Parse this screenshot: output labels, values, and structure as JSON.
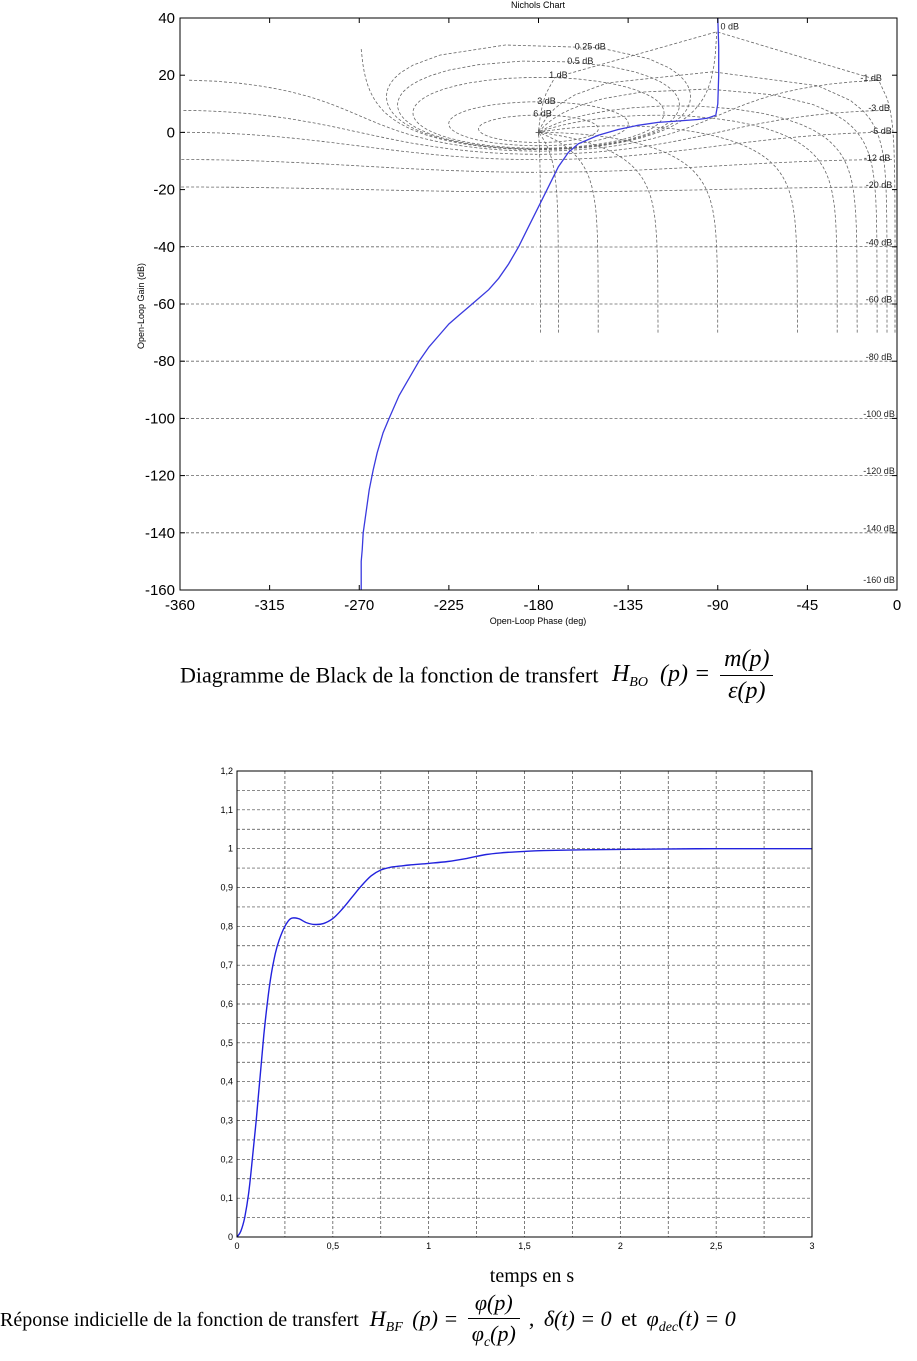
{
  "charts": {
    "nichols": {
      "title": "Nichols Chart",
      "xlabel": "Open-Loop Phase (deg)",
      "ylabel": "Open-Loop Gain (dB)"
    },
    "step": {
      "xlabel": "temps en s"
    }
  },
  "chart_data": [
    {
      "type": "line",
      "title": "Nichols Chart",
      "xlabel": "Open-Loop Phase (deg)",
      "ylabel": "Open-Loop Gain (dB)",
      "xlim": [
        -360,
        0
      ],
      "ylim": [
        -160,
        40
      ],
      "xticks": [
        "-360",
        "-315",
        "-270",
        "-225",
        "-180",
        "-135",
        "-90",
        "-45",
        "0"
      ],
      "yticks": [
        "40",
        "20",
        "0",
        "-20",
        "-40",
        "-60",
        "-80",
        "-100",
        "-120",
        "-140",
        "-160"
      ],
      "grid": "nichols",
      "grid_labels": [
        "0 dB",
        "0.25 dB",
        "0.5 dB",
        "1 dB",
        "3 dB",
        "6 dB",
        "-1 dB",
        "-3 dB",
        "-6 dB",
        "-12 dB",
        "-20 dB",
        "-40 dB",
        "-60 dB",
        "-80 dB",
        "-100 dB",
        "-120 dB",
        "-140 dB",
        "-160 dB"
      ],
      "series": [
        {
          "color": "#3a3adf",
          "x": [
            -90,
            -89.5,
            -89.5,
            -90,
            -91,
            -95,
            -100,
            -110,
            -120,
            -130,
            -140,
            -150,
            -160,
            -165,
            -170,
            -175,
            -180,
            -185,
            -190,
            -195,
            -200,
            -205,
            -210,
            -215,
            -220,
            -225,
            -230,
            -235,
            -240,
            -245,
            -250,
            -255,
            -258,
            -261,
            -263,
            -265,
            -266,
            -267,
            -268,
            -268.5,
            -269,
            -269,
            -269
          ],
          "y": [
            40,
            30,
            20,
            10,
            6,
            5,
            4.5,
            4,
            3.5,
            2.5,
            1,
            -1,
            -4,
            -7,
            -12,
            -19,
            -26,
            -33,
            -40,
            -46,
            -51,
            -55,
            -58,
            -61,
            -64,
            -67,
            -71,
            -75,
            -80,
            -86,
            -92,
            -100,
            -105,
            -112,
            -118,
            -125,
            -130,
            -135,
            -140,
            -146,
            -150,
            -155,
            -160
          ]
        }
      ]
    },
    {
      "type": "line",
      "xlabel": "temps en s",
      "xlim": [
        0,
        3
      ],
      "ylim": [
        0,
        1.2
      ],
      "xticks": [
        "0",
        "0,5",
        "1",
        "1,5",
        "2",
        "2,5",
        "3"
      ],
      "yticks": [
        "1,2",
        "1,1",
        "1",
        "0,9",
        "0,8",
        "0,7",
        "0,6",
        "0,5",
        "0,4",
        "0,3",
        "0,2",
        "0,1",
        "0"
      ],
      "grid": true,
      "series": [
        {
          "color": "#2222dd",
          "x": [
            0,
            0.02,
            0.04,
            0.06,
            0.08,
            0.1,
            0.12,
            0.14,
            0.16,
            0.18,
            0.2,
            0.22,
            0.25,
            0.28,
            0.32,
            0.36,
            0.4,
            0.45,
            0.5,
            0.55,
            0.6,
            0.65,
            0.7,
            0.75,
            0.8,
            0.85,
            0.9,
            1.0,
            1.1,
            1.2,
            1.3,
            1.4,
            1.5,
            1.6,
            1.8,
            2.0,
            2.2,
            2.5,
            2.8,
            3.0
          ],
          "y": [
            0,
            0.015,
            0.05,
            0.11,
            0.2,
            0.3,
            0.41,
            0.52,
            0.61,
            0.68,
            0.73,
            0.765,
            0.8,
            0.82,
            0.82,
            0.81,
            0.805,
            0.807,
            0.82,
            0.845,
            0.875,
            0.905,
            0.93,
            0.945,
            0.952,
            0.955,
            0.958,
            0.962,
            0.967,
            0.975,
            0.985,
            0.99,
            0.993,
            0.995,
            0.997,
            0.998,
            0.999,
            1.0,
            1.0,
            1.0
          ]
        }
      ]
    }
  ],
  "captions": {
    "black": {
      "text": "Diagramme de Black de la fonction de transfert",
      "H": "H",
      "sub": "BO",
      "lhs_arg": "(p) =",
      "num": "m(p)",
      "den": "ε(p)"
    },
    "step": {
      "text": "Réponse indicielle de la fonction de transfert",
      "H": "H",
      "sub": "BF",
      "lhs_arg": "(p) =",
      "num": "φ(p)",
      "den_phi": "φ",
      "den_sub": "c",
      "den_arg": "(p)",
      "tail1": ",",
      "delta": "δ(t) = 0",
      "et": "et",
      "phi": "φ",
      "phi_sub": "dec",
      "phi_tail": "(t) = 0"
    }
  }
}
